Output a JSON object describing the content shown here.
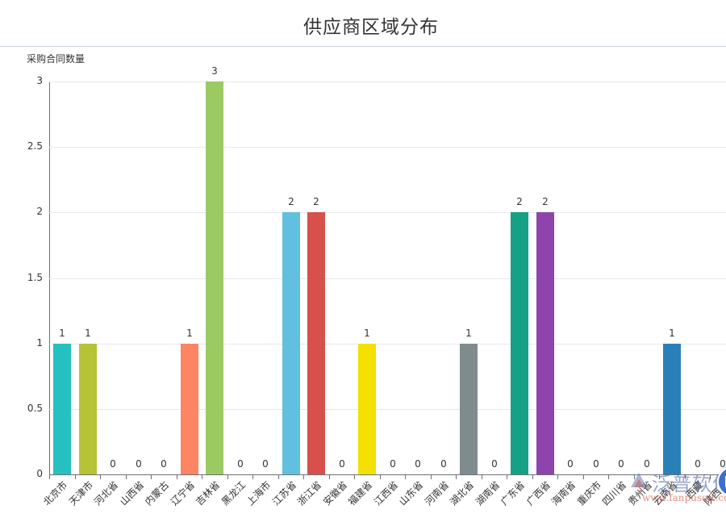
{
  "title": "供应商区域分布",
  "y_axis_title": "采购合同数量",
  "colors": {
    "axis": "#6e7079",
    "grid": "#e3e8ef",
    "text": "#333333",
    "floating_button": "#3d6fd0"
  },
  "watermark": {
    "text_cn": "泛普软件",
    "text_en": "www.fanpusoft.com"
  },
  "chart_data": {
    "type": "bar",
    "title": "供应商区域分布",
    "xlabel": "",
    "ylabel": "采购合同数量",
    "ylim": [
      0,
      3
    ],
    "yticks": [
      0,
      0.5,
      1,
      1.5,
      2,
      2.5,
      3
    ],
    "grid": true,
    "legend": "none",
    "data_labels": true,
    "categories": [
      "北京市",
      "天津市",
      "河北省",
      "山西省",
      "内蒙古",
      "辽宁省",
      "吉林省",
      "黑龙江",
      "上海市",
      "江苏省",
      "浙江省",
      "安徽省",
      "福建省",
      "江西省",
      "山东省",
      "河南省",
      "湖北省",
      "湖南省",
      "广东省",
      "广西省",
      "海南省",
      "重庆市",
      "四川省",
      "贵州省",
      "云南省",
      "西藏",
      "陕西省"
    ],
    "values": [
      1,
      1,
      0,
      0,
      0,
      1,
      3,
      0,
      0,
      2,
      2,
      0,
      1,
      0,
      0,
      0,
      1,
      0,
      2,
      2,
      0,
      0,
      0,
      0,
      1,
      0,
      0
    ],
    "bar_colors": [
      "#26c0c0",
      "#b5c334",
      "#c1232b",
      "#e87c25",
      "#27727b",
      "#fe8463",
      "#9bca63",
      "#fad860",
      "#f3a43b",
      "#60c0dd",
      "#d7504b",
      "#c6e579",
      "#f4e001",
      "#f0805a",
      "#26c0c0",
      "#b5c334",
      "#7f8c8d",
      "#e87c25",
      "#16a085",
      "#8e44ad",
      "#2c3e50",
      "#f39c12",
      "#c0392b",
      "#1abc9c",
      "#2980b9",
      "#95a5a6",
      "#d35400"
    ]
  }
}
